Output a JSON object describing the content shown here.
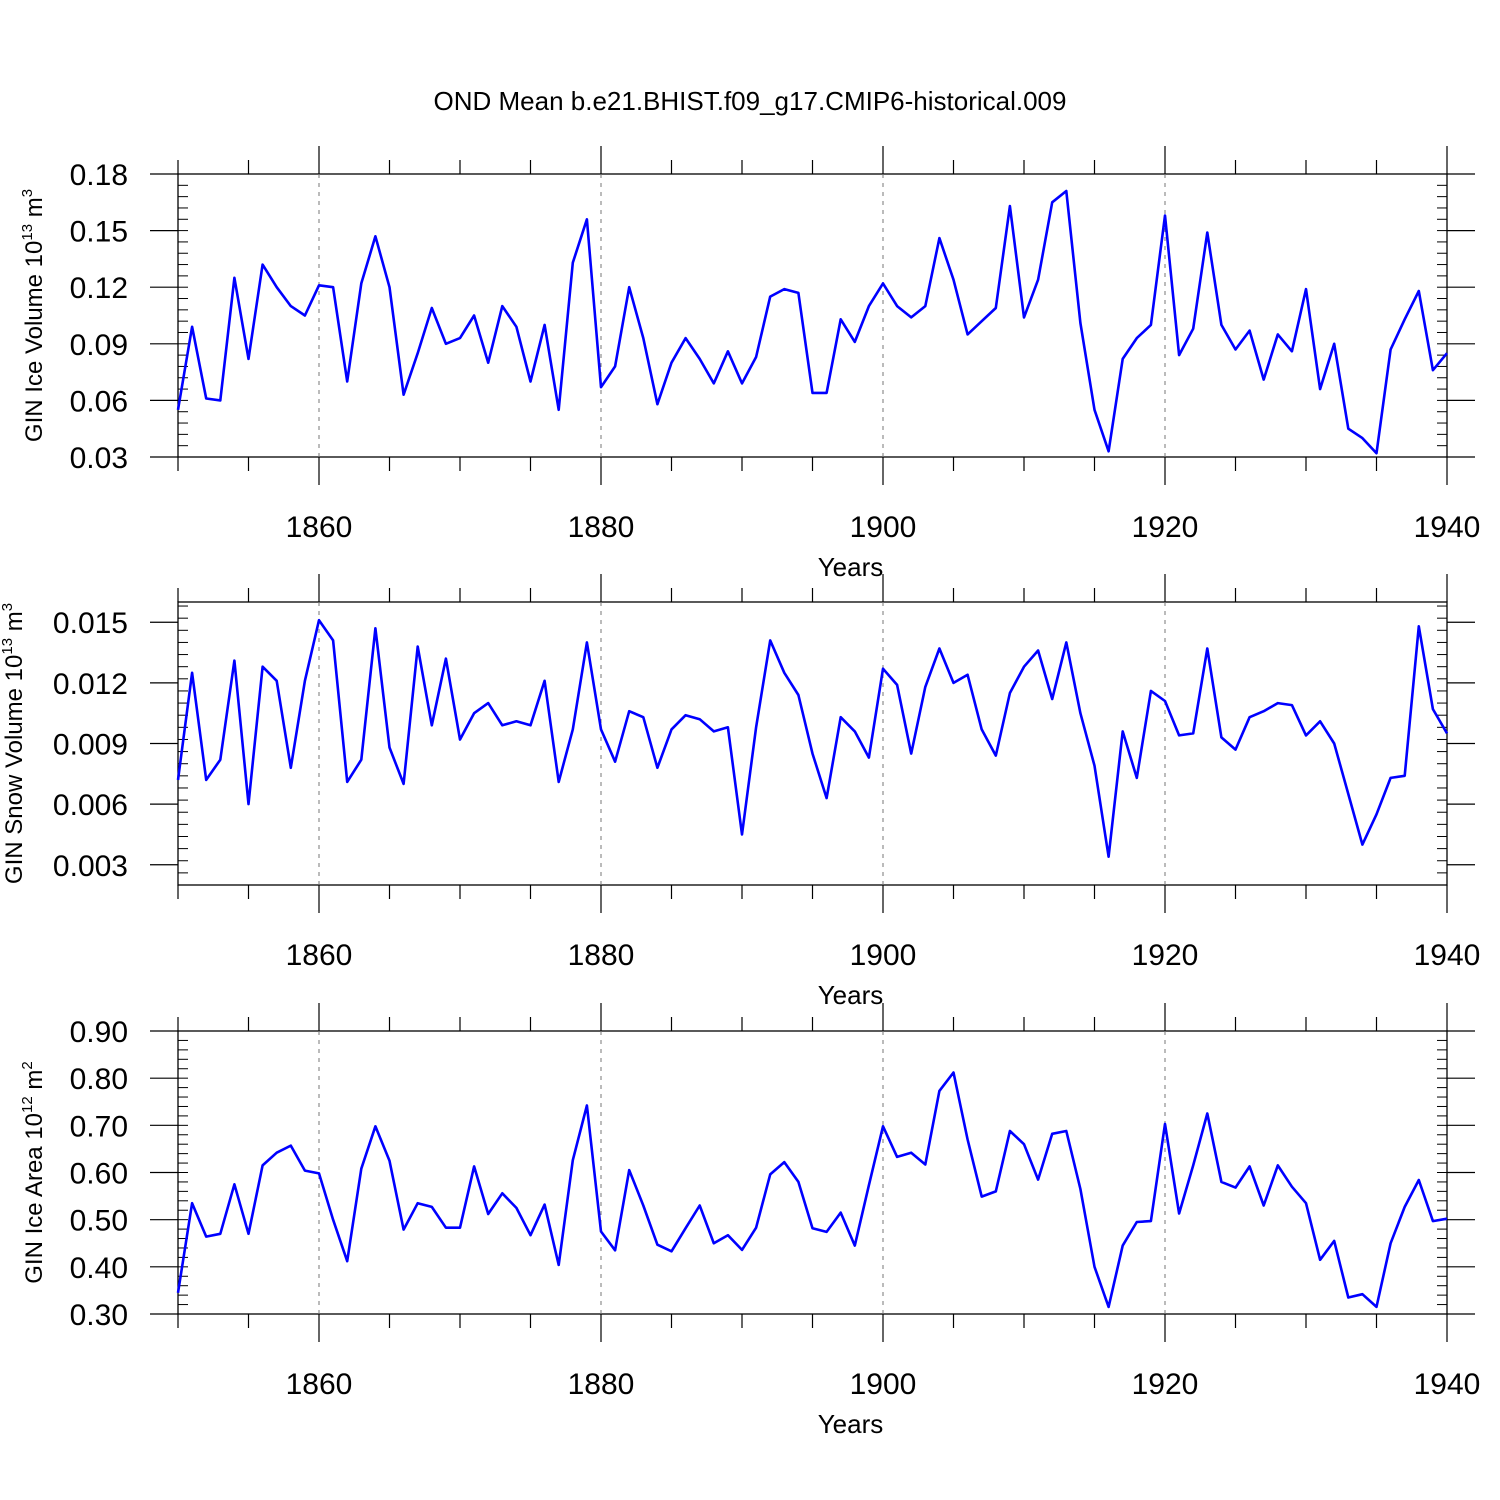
{
  "title": "OND Mean b.e21.BHIST.f09_g17.CMIP6-historical.009",
  "chart_data": [
    {
      "type": "line",
      "ylabel": {
        "prefix": "GIN Ice Volume 10",
        "exponent": "13",
        "unit_base": " m",
        "unit_exponent": "3"
      },
      "xlabel": "Years",
      "xlim": [
        1850,
        1940
      ],
      "ylim": [
        0.03,
        0.18
      ],
      "yticks": [
        "0.03",
        "0.06",
        "0.09",
        "0.12",
        "0.15",
        "0.18"
      ],
      "xticks": [
        "1860",
        "1880",
        "1900",
        "1920",
        "1940"
      ],
      "minor_y_step": 0.006,
      "line_color": "#0000ff",
      "grid": "dashed vertical at major x ticks",
      "x": [
        1850,
        1851,
        1852,
        1853,
        1854,
        1855,
        1856,
        1857,
        1858,
        1859,
        1860,
        1861,
        1862,
        1863,
        1864,
        1865,
        1866,
        1867,
        1868,
        1869,
        1870,
        1871,
        1872,
        1873,
        1874,
        1875,
        1876,
        1877,
        1878,
        1879,
        1880,
        1881,
        1882,
        1883,
        1884,
        1885,
        1886,
        1887,
        1888,
        1889,
        1890,
        1891,
        1892,
        1893,
        1894,
        1895,
        1896,
        1897,
        1898,
        1899,
        1900,
        1901,
        1902,
        1903,
        1904,
        1905,
        1906,
        1907,
        1908,
        1909,
        1910,
        1911,
        1912,
        1913,
        1914,
        1915,
        1916,
        1917,
        1918,
        1919,
        1920,
        1921,
        1922,
        1923,
        1924,
        1925,
        1926,
        1927,
        1928,
        1929,
        1930,
        1931,
        1932,
        1933,
        1934,
        1935,
        1936,
        1937,
        1938,
        1939,
        1940
      ],
      "values": [
        0.055,
        0.099,
        0.061,
        0.06,
        0.125,
        0.082,
        0.132,
        0.12,
        0.11,
        0.105,
        0.121,
        0.12,
        0.07,
        0.122,
        0.147,
        0.12,
        0.063,
        0.085,
        0.109,
        0.09,
        0.093,
        0.105,
        0.08,
        0.11,
        0.099,
        0.07,
        0.1,
        0.055,
        0.133,
        0.156,
        0.067,
        0.078,
        0.12,
        0.093,
        0.058,
        0.08,
        0.093,
        0.082,
        0.069,
        0.086,
        0.069,
        0.083,
        0.115,
        0.119,
        0.117,
        0.064,
        0.064,
        0.103,
        0.091,
        0.11,
        0.122,
        0.11,
        0.104,
        0.11,
        0.146,
        0.124,
        0.095,
        0.102,
        0.109,
        0.163,
        0.104,
        0.124,
        0.165,
        0.171,
        0.101,
        0.055,
        0.033,
        0.082,
        0.093,
        0.1,
        0.158,
        0.084,
        0.098,
        0.149,
        0.1,
        0.087,
        0.097,
        0.071,
        0.095,
        0.086,
        0.119,
        0.066,
        0.09,
        0.045,
        0.04,
        0.032,
        0.087,
        0.103,
        0.118,
        0.076,
        0.085
      ]
    },
    {
      "type": "line",
      "ylabel": {
        "prefix": "GIN Snow Volume 10",
        "exponent": "13",
        "unit_base": " m",
        "unit_exponent": "3"
      },
      "xlabel": "Years",
      "xlim": [
        1850,
        1940
      ],
      "ylim": [
        0.002,
        0.016
      ],
      "yticks": [
        "0.003",
        "0.006",
        "0.009",
        "0.012",
        "0.015"
      ],
      "xticks": [
        "1860",
        "1880",
        "1900",
        "1920",
        "1940"
      ],
      "minor_y_step": 0.0006,
      "line_color": "#0000ff",
      "grid": "dashed vertical at major x ticks",
      "x": [
        1850,
        1851,
        1852,
        1853,
        1854,
        1855,
        1856,
        1857,
        1858,
        1859,
        1860,
        1861,
        1862,
        1863,
        1864,
        1865,
        1866,
        1867,
        1868,
        1869,
        1870,
        1871,
        1872,
        1873,
        1874,
        1875,
        1876,
        1877,
        1878,
        1879,
        1880,
        1881,
        1882,
        1883,
        1884,
        1885,
        1886,
        1887,
        1888,
        1889,
        1890,
        1891,
        1892,
        1893,
        1894,
        1895,
        1896,
        1897,
        1898,
        1899,
        1900,
        1901,
        1902,
        1903,
        1904,
        1905,
        1906,
        1907,
        1908,
        1909,
        1910,
        1911,
        1912,
        1913,
        1914,
        1915,
        1916,
        1917,
        1918,
        1919,
        1920,
        1921,
        1922,
        1923,
        1924,
        1925,
        1926,
        1927,
        1928,
        1929,
        1930,
        1931,
        1932,
        1933,
        1934,
        1935,
        1936,
        1937,
        1938,
        1939,
        1940
      ],
      "values": [
        0.0072,
        0.0125,
        0.0072,
        0.0082,
        0.0131,
        0.006,
        0.0128,
        0.0121,
        0.0078,
        0.0121,
        0.0151,
        0.0141,
        0.0071,
        0.0082,
        0.0147,
        0.0088,
        0.007,
        0.0138,
        0.0099,
        0.0132,
        0.0092,
        0.0105,
        0.011,
        0.0099,
        0.0101,
        0.0099,
        0.0121,
        0.0071,
        0.0097,
        0.014,
        0.0097,
        0.0081,
        0.0106,
        0.0103,
        0.0078,
        0.0097,
        0.0104,
        0.0102,
        0.0096,
        0.0098,
        0.0045,
        0.0098,
        0.0141,
        0.0125,
        0.0114,
        0.0085,
        0.0063,
        0.0103,
        0.0096,
        0.0083,
        0.0127,
        0.0119,
        0.0085,
        0.0118,
        0.0137,
        0.012,
        0.0124,
        0.0097,
        0.0084,
        0.0115,
        0.0128,
        0.0136,
        0.0112,
        0.014,
        0.0105,
        0.0079,
        0.0034,
        0.0096,
        0.0073,
        0.0116,
        0.0111,
        0.0094,
        0.0095,
        0.0137,
        0.0093,
        0.0087,
        0.0103,
        0.0106,
        0.011,
        0.0109,
        0.0094,
        0.0101,
        0.009,
        0.0065,
        0.004,
        0.0055,
        0.0073,
        0.0074,
        0.0148,
        0.0107,
        0.0095
      ]
    },
    {
      "type": "line",
      "ylabel": {
        "prefix": "GIN Ice Area 10",
        "exponent": "12",
        "unit_base": " m",
        "unit_exponent": "2"
      },
      "xlabel": "Years",
      "xlim": [
        1850,
        1940
      ],
      "ylim": [
        0.3,
        0.9
      ],
      "yticks": [
        "0.30",
        "0.40",
        "0.50",
        "0.60",
        "0.70",
        "0.80",
        "0.90"
      ],
      "xticks": [
        "1860",
        "1880",
        "1900",
        "1920",
        "1940"
      ],
      "minor_y_step": 0.02,
      "line_color": "#0000ff",
      "grid": "dashed vertical at major x ticks",
      "x": [
        1850,
        1851,
        1852,
        1853,
        1854,
        1855,
        1856,
        1857,
        1858,
        1859,
        1860,
        1861,
        1862,
        1863,
        1864,
        1865,
        1866,
        1867,
        1868,
        1869,
        1870,
        1871,
        1872,
        1873,
        1874,
        1875,
        1876,
        1877,
        1878,
        1879,
        1880,
        1881,
        1882,
        1883,
        1884,
        1885,
        1886,
        1887,
        1888,
        1889,
        1890,
        1891,
        1892,
        1893,
        1894,
        1895,
        1896,
        1897,
        1898,
        1899,
        1900,
        1901,
        1902,
        1903,
        1904,
        1905,
        1906,
        1907,
        1908,
        1909,
        1910,
        1911,
        1912,
        1913,
        1914,
        1915,
        1916,
        1917,
        1918,
        1919,
        1920,
        1921,
        1922,
        1923,
        1924,
        1925,
        1926,
        1927,
        1928,
        1929,
        1930,
        1931,
        1932,
        1933,
        1934,
        1935,
        1936,
        1937,
        1938,
        1939,
        1940
      ],
      "values": [
        0.345,
        0.535,
        0.464,
        0.47,
        0.575,
        0.47,
        0.615,
        0.642,
        0.657,
        0.604,
        0.598,
        0.5,
        0.412,
        0.608,
        0.698,
        0.625,
        0.479,
        0.535,
        0.527,
        0.483,
        0.483,
        0.613,
        0.512,
        0.556,
        0.525,
        0.467,
        0.532,
        0.404,
        0.626,
        0.742,
        0.475,
        0.435,
        0.605,
        0.53,
        0.447,
        0.433,
        0.482,
        0.53,
        0.45,
        0.467,
        0.436,
        0.483,
        0.596,
        0.622,
        0.58,
        0.482,
        0.474,
        0.515,
        0.445,
        0.573,
        0.698,
        0.633,
        0.642,
        0.617,
        0.773,
        0.812,
        0.67,
        0.549,
        0.56,
        0.688,
        0.66,
        0.585,
        0.682,
        0.688,
        0.565,
        0.4,
        0.315,
        0.445,
        0.495,
        0.497,
        0.703,
        0.513,
        0.615,
        0.725,
        0.58,
        0.568,
        0.613,
        0.53,
        0.615,
        0.57,
        0.535,
        0.415,
        0.455,
        0.335,
        0.342,
        0.315,
        0.45,
        0.527,
        0.584,
        0.497,
        0.502
      ]
    }
  ]
}
